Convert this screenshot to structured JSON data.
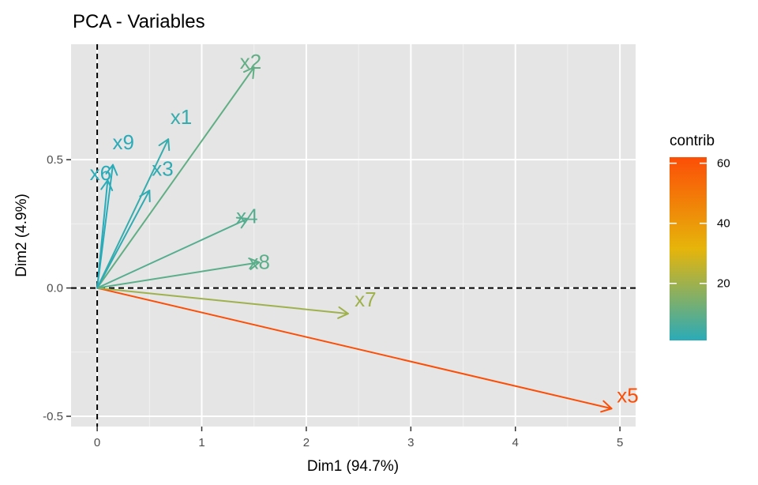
{
  "chart_data": {
    "type": "scatter",
    "subtype": "pca-variable-arrows",
    "title": "PCA - Variables",
    "xlabel": "Dim1 (94.7%)",
    "ylabel": "Dim2 (4.9%)",
    "xlim": [
      -0.25,
      5.15
    ],
    "ylim": [
      -0.54,
      0.95
    ],
    "x_ticks": [
      0,
      1,
      2,
      3,
      4,
      5
    ],
    "x_tick_labels": [
      "0",
      "1",
      "2",
      "3",
      "4",
      "5"
    ],
    "y_ticks": [
      -0.5,
      0.0,
      0.5
    ],
    "y_tick_labels": [
      "-0.5",
      "0.0",
      "0.5"
    ],
    "grid": true,
    "background": "#e5e5e5",
    "reference_lines": {
      "x": 0,
      "y": 0,
      "style": "dashed"
    },
    "variables": [
      {
        "name": "x1",
        "x": 0.68,
        "y": 0.58,
        "contrib": 3
      },
      {
        "name": "x2",
        "x": 1.5,
        "y": 0.86,
        "contrib": 10
      },
      {
        "name": "x3",
        "x": 0.5,
        "y": 0.38,
        "contrib": 2
      },
      {
        "name": "x4",
        "x": 1.44,
        "y": 0.27,
        "contrib": 8
      },
      {
        "name": "x5",
        "x": 4.92,
        "y": -0.47,
        "contrib": 62
      },
      {
        "name": "x6",
        "x": 0.1,
        "y": 0.42,
        "contrib": 1
      },
      {
        "name": "x7",
        "x": 2.4,
        "y": -0.1,
        "contrib": 20
      },
      {
        "name": "x8",
        "x": 1.55,
        "y": 0.1,
        "contrib": 9
      },
      {
        "name": "x9",
        "x": 0.15,
        "y": 0.48,
        "contrib": 1
      }
    ],
    "legend": {
      "title": "contrib",
      "position": "right",
      "ticks": [
        20,
        40,
        60
      ],
      "tick_labels": [
        "20",
        "40",
        "60"
      ],
      "range": [
        1,
        62
      ],
      "colors": [
        "#2AABB8",
        "#E6B50A",
        "#FC4E07"
      ]
    }
  }
}
